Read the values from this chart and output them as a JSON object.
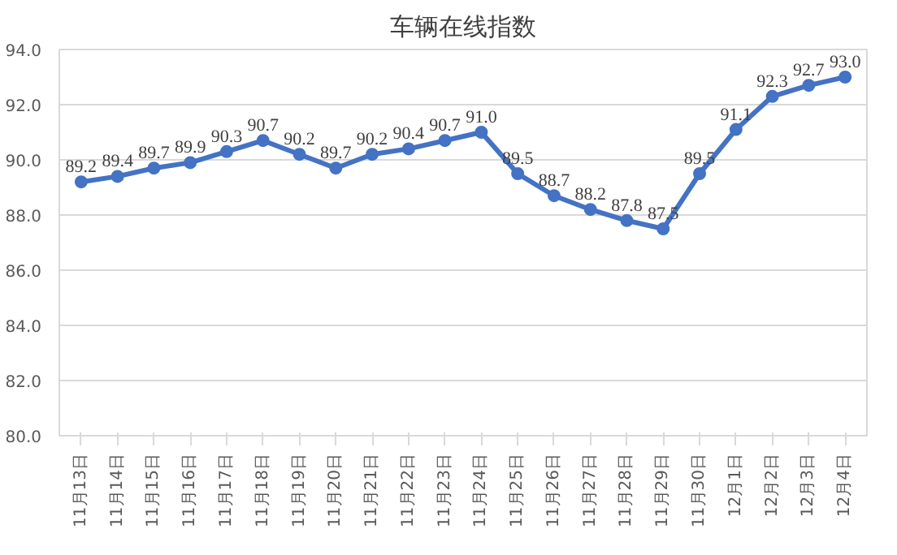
{
  "chart_data": {
    "type": "line",
    "title": "车辆在线指数",
    "categories": [
      "11月13日",
      "11月14日",
      "11月15日",
      "11月16日",
      "11月17日",
      "11月18日",
      "11月19日",
      "11月20日",
      "11月21日",
      "11月22日",
      "11月23日",
      "11月24日",
      "11月25日",
      "11月26日",
      "11月27日",
      "11月28日",
      "11月29日",
      "11月30日",
      "12月1日",
      "12月2日",
      "12月3日",
      "12月4日"
    ],
    "series": [
      {
        "color": "#4472c4",
        "values": [
          89.2,
          89.4,
          89.7,
          89.9,
          90.3,
          90.7,
          90.2,
          89.7,
          90.2,
          90.4,
          90.7,
          91.0,
          89.5,
          88.7,
          88.2,
          87.8,
          87.5,
          89.5,
          91.1,
          92.3,
          92.7,
          93.0
        ],
        "value_labels": [
          "89.2",
          "89.4",
          "89.7",
          "89.9",
          "90.3",
          "90.7",
          "90.2",
          "89.7",
          "90.2",
          "90.4",
          "90.7",
          "91.0",
          "89.5",
          "88.7",
          "88.2",
          "87.8",
          "87.5",
          "89.5",
          "91.1",
          "92.3",
          "92.7",
          "93.0"
        ]
      }
    ],
    "ylim": [
      80,
      94
    ],
    "yticks": [
      {
        "value": 80,
        "label": "80.0"
      },
      {
        "value": 82,
        "label": "82.0"
      },
      {
        "value": 84,
        "label": "84.0"
      },
      {
        "value": 86,
        "label": "86.0"
      },
      {
        "value": 88,
        "label": "88.0"
      },
      {
        "value": 90,
        "label": "90.0"
      },
      {
        "value": 92,
        "label": "92.0"
      },
      {
        "value": 94,
        "label": "94.0"
      }
    ],
    "grid": "y",
    "marker": "circle",
    "line_style": "solid"
  }
}
